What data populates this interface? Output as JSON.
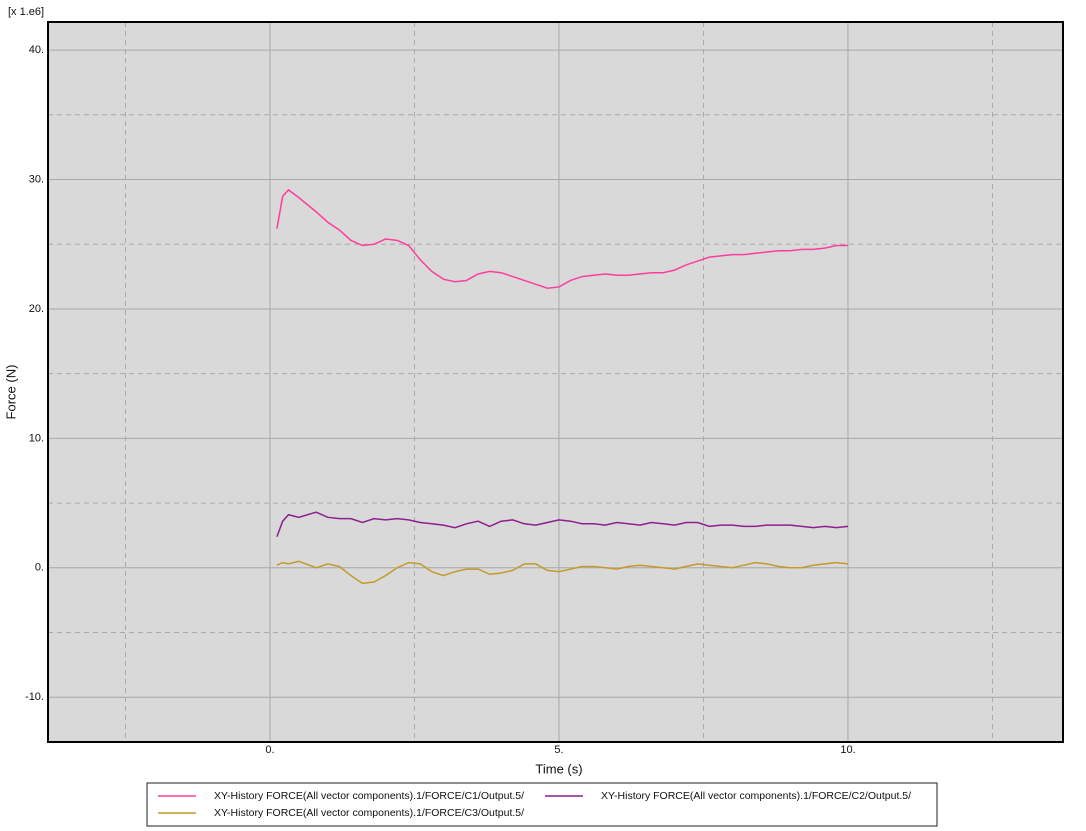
{
  "chart_data": {
    "type": "line",
    "multiplier_label": "[x 1.e6]",
    "xlabel": "Time (s)",
    "ylabel": "Force (N)",
    "x": [
      0.12,
      0.22,
      0.32,
      0.5,
      0.8,
      1.0,
      1.2,
      1.4,
      1.6,
      1.8,
      2.0,
      2.2,
      2.4,
      2.6,
      2.8,
      3.0,
      3.2,
      3.4,
      3.6,
      3.8,
      4.0,
      4.2,
      4.4,
      4.6,
      4.8,
      5.0,
      5.2,
      5.4,
      5.6,
      5.8,
      6.0,
      6.2,
      6.4,
      6.6,
      6.8,
      7.0,
      7.2,
      7.4,
      7.6,
      7.8,
      8.0,
      8.2,
      8.4,
      8.6,
      8.8,
      9.0,
      9.2,
      9.4,
      9.6,
      9.8,
      10.0
    ],
    "series": [
      {
        "name": "XY-History FORCE(All vector components).1/FORCE/C1/Output.5/",
        "color": "#ff3d9e",
        "values": [
          26.2,
          28.7,
          29.2,
          28.6,
          27.5,
          26.7,
          26.1,
          25.3,
          24.9,
          25.0,
          25.4,
          25.3,
          24.9,
          23.8,
          22.9,
          22.3,
          22.1,
          22.2,
          22.7,
          22.9,
          22.8,
          22.5,
          22.2,
          21.9,
          21.6,
          21.7,
          22.2,
          22.5,
          22.6,
          22.7,
          22.6,
          22.6,
          22.7,
          22.8,
          22.8,
          23.0,
          23.4,
          23.7,
          24.0,
          24.1,
          24.2,
          24.2,
          24.3,
          24.4,
          24.5,
          24.5,
          24.6,
          24.6,
          24.7,
          24.9,
          24.9
        ]
      },
      {
        "name": "XY-History FORCE(All vector components).1/FORCE/C2/Output.5/",
        "color": "#8e1f8e",
        "values": [
          2.4,
          3.6,
          4.1,
          3.9,
          4.3,
          3.9,
          3.8,
          3.8,
          3.5,
          3.8,
          3.7,
          3.8,
          3.7,
          3.5,
          3.4,
          3.3,
          3.1,
          3.4,
          3.6,
          3.2,
          3.6,
          3.7,
          3.4,
          3.3,
          3.5,
          3.7,
          3.6,
          3.4,
          3.4,
          3.3,
          3.5,
          3.4,
          3.3,
          3.5,
          3.4,
          3.3,
          3.5,
          3.5,
          3.2,
          3.3,
          3.3,
          3.2,
          3.2,
          3.3,
          3.3,
          3.3,
          3.2,
          3.1,
          3.2,
          3.1,
          3.2
        ]
      },
      {
        "name": "XY-History FORCE(All vector components).1/FORCE/C3/Output.5/",
        "color": "#c49a2a",
        "values": [
          0.2,
          0.4,
          0.3,
          0.5,
          0.0,
          0.3,
          0.1,
          -0.6,
          -1.2,
          -1.1,
          -0.6,
          0.0,
          0.4,
          0.3,
          -0.3,
          -0.6,
          -0.3,
          -0.1,
          -0.1,
          -0.5,
          -0.4,
          -0.2,
          0.3,
          0.3,
          -0.2,
          -0.3,
          -0.1,
          0.1,
          0.1,
          0.0,
          -0.1,
          0.1,
          0.2,
          0.1,
          0.0,
          -0.1,
          0.1,
          0.3,
          0.2,
          0.1,
          0.0,
          0.2,
          0.4,
          0.3,
          0.1,
          0.0,
          0.0,
          0.2,
          0.3,
          0.4,
          0.3
        ]
      }
    ],
    "xlim": [
      -3.84,
      13.72
    ],
    "ylim": [
      -13.46,
      42.17
    ],
    "xticks": [
      {
        "value": 0,
        "label": "0."
      },
      {
        "value": 5,
        "label": "5."
      },
      {
        "value": 10,
        "label": "10."
      }
    ],
    "yticks": [
      {
        "value": -10,
        "label": "-10."
      },
      {
        "value": 0,
        "label": "0."
      },
      {
        "value": 10,
        "label": "10."
      },
      {
        "value": 20,
        "label": "20."
      },
      {
        "value": 30,
        "label": "30."
      },
      {
        "value": 40,
        "label": "40."
      }
    ],
    "minor_xticks": [
      -2.5,
      2.5,
      7.5,
      12.5
    ],
    "minor_yticks": [
      -5,
      5,
      15,
      25,
      35
    ],
    "grid": true
  }
}
